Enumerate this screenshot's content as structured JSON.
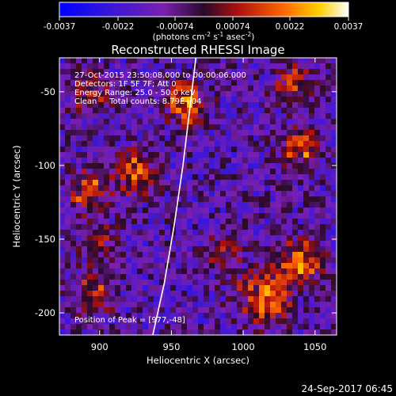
{
  "chart_data": {
    "type": "heatmap",
    "title": "Reconstructed RHESSI Image",
    "xlabel": "Heliocentric X (arcsec)",
    "ylabel": "Heliocentric Y (arcsec)",
    "xlim": [
      872,
      1065
    ],
    "ylim": [
      -215,
      -27
    ],
    "x_ticks": [
      900,
      950,
      1000,
      1050
    ],
    "y_ticks": [
      -50,
      -100,
      -150,
      -200
    ],
    "colorbar": {
      "range": [
        -0.0037,
        0.0037
      ],
      "tick_values": [
        -0.0037,
        -0.0022,
        -0.00074,
        0.00074,
        0.0022,
        0.0037
      ],
      "tick_labels": [
        "-0.0037",
        "-0.0022",
        "-0.00074",
        "0.00074",
        "0.0022",
        "0.0037"
      ],
      "unit_prefix": "(photons cm",
      "unit_exp1": "-2",
      "unit_mid": " s",
      "unit_exp2": "-1",
      "unit_mid2": " asec",
      "unit_exp3": "-2",
      "unit_suffix": ")"
    },
    "info_lines": [
      "27-Oct-2015 23:50:08.000 to 00:00:06.000",
      "Detectors: 1F 5F 7F; Att 0",
      "Energy Range: 25.0 - 50.0 keV",
      "Clean     Total counts: 8.79E+04"
    ],
    "peak_text": "Position of Peak = [977,-48]",
    "limb_points": [
      [
        937,
        -215
      ],
      [
        945,
        -180
      ],
      [
        952,
        -140
      ],
      [
        958,
        -100
      ],
      [
        963,
        -60
      ],
      [
        967,
        -27
      ]
    ],
    "sources": [
      {
        "x": 925,
        "y": -105,
        "amp": 0.0032,
        "sigma": 9
      },
      {
        "x": 960,
        "y": -58,
        "amp": 0.003,
        "sigma": 10
      },
      {
        "x": 1040,
        "y": -88,
        "amp": 0.0026,
        "sigma": 10
      },
      {
        "x": 1040,
        "y": -165,
        "amp": 0.003,
        "sigma": 11
      },
      {
        "x": 1015,
        "y": -190,
        "amp": 0.0034,
        "sigma": 12
      },
      {
        "x": 893,
        "y": -118,
        "amp": 0.0028,
        "sigma": 9
      },
      {
        "x": 895,
        "y": -50,
        "amp": 0.0022,
        "sigma": 9
      },
      {
        "x": 1035,
        "y": -45,
        "amp": 0.0024,
        "sigma": 9
      },
      {
        "x": 895,
        "y": -185,
        "amp": 0.0022,
        "sigma": 10
      },
      {
        "x": 985,
        "y": -160,
        "amp": 0.0018,
        "sigma": 9
      },
      {
        "x": 900,
        "y": -150,
        "amp": 0.0016,
        "sigma": 8
      }
    ]
  },
  "timestamp": "24-Sep-2017 06:45"
}
